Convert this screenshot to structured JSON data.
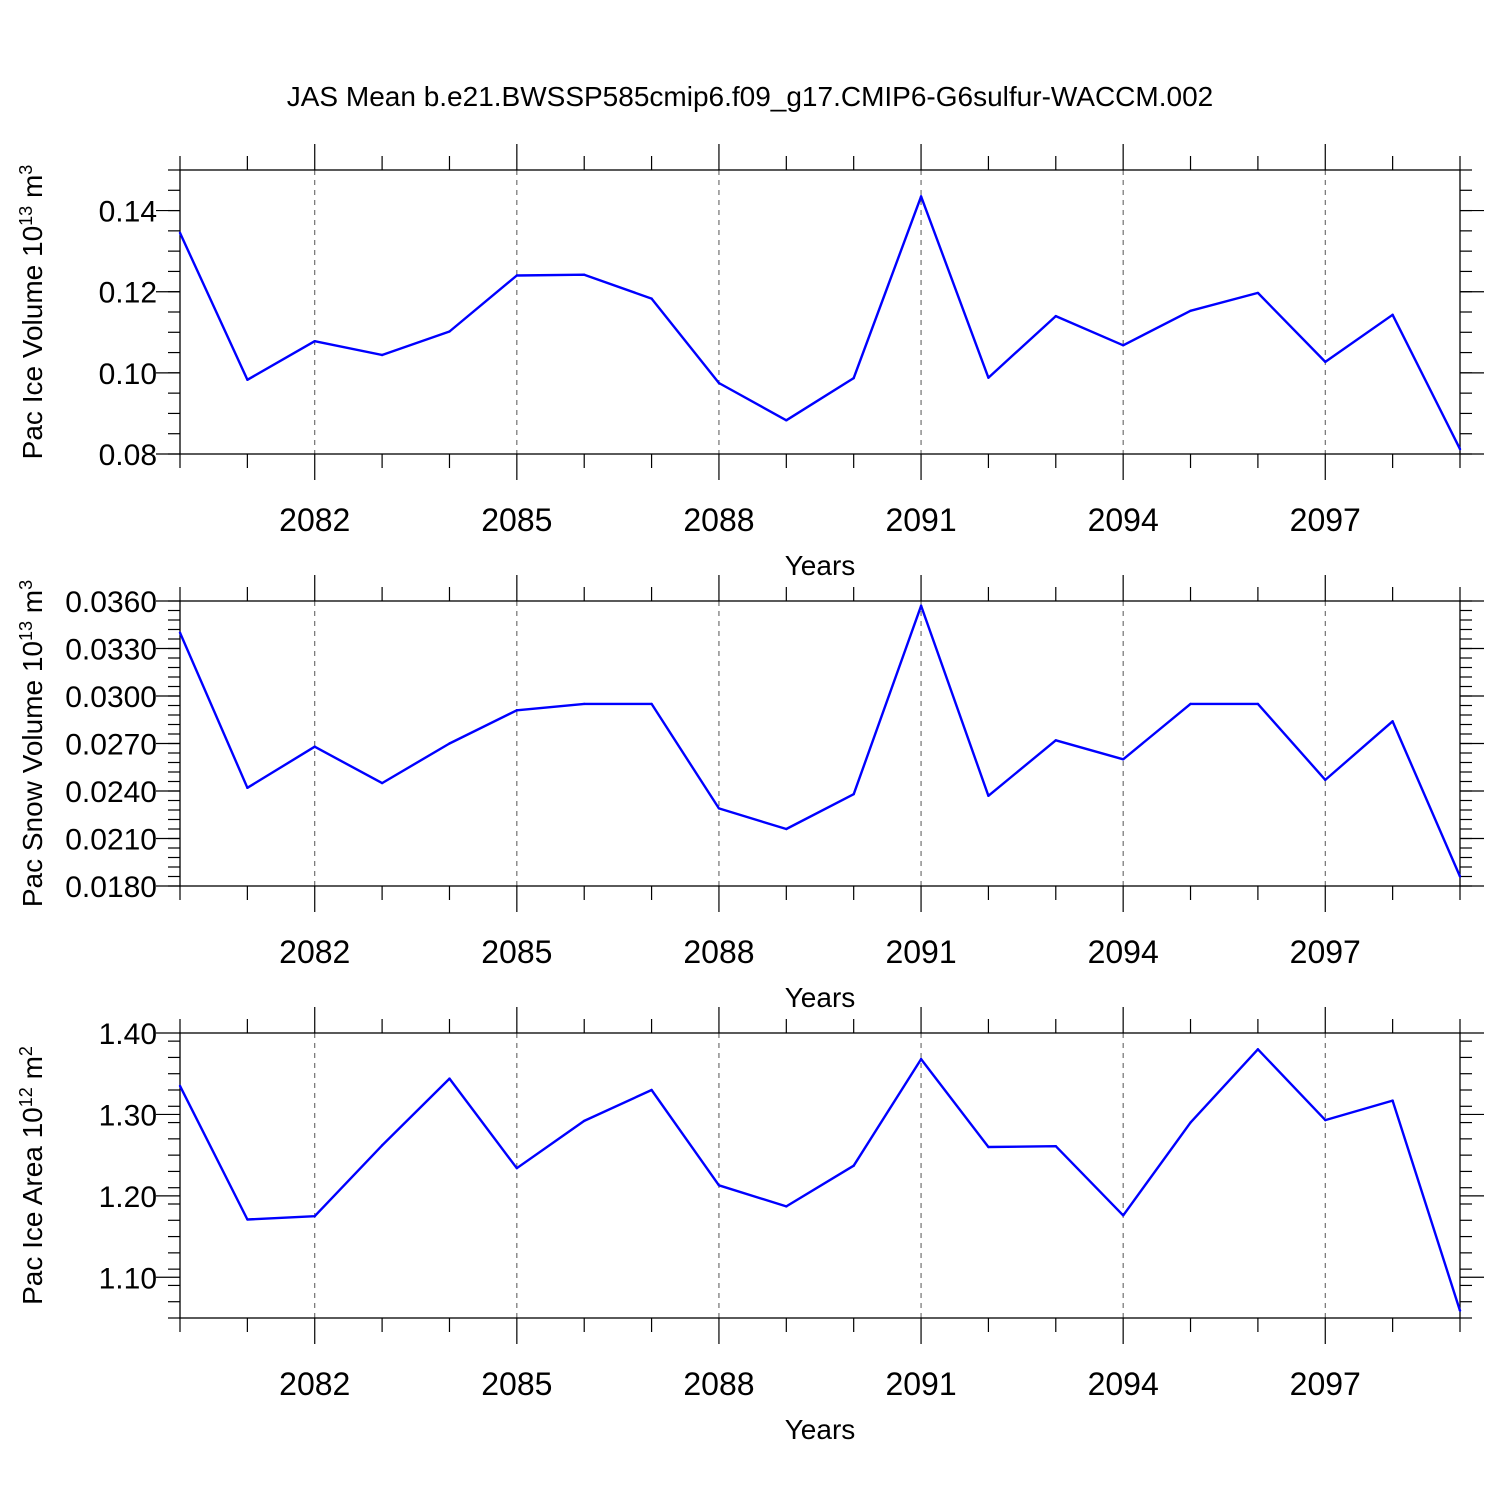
{
  "title": "JAS Mean b.e21.BWSSP585cmip6.f09_g17.CMIP6-G6sulfur-WACCM.002",
  "colors": {
    "line": "#0000ff",
    "grid": "#555555"
  },
  "chart_data": [
    {
      "type": "line",
      "ylabel": "Pac Ice Volume 10",
      "ylabel_exp": "13",
      "ylabel_unit": " m",
      "ylabel_unit_exp": "3",
      "xlabel": "Years",
      "xlim": [
        2080,
        2099
      ],
      "ylim": [
        0.08,
        0.15
      ],
      "yticks": [
        0.08,
        0.1,
        0.12,
        0.14
      ],
      "yticks_text": [
        "0.08",
        "0.10",
        "0.12",
        "0.14"
      ],
      "ydecimals": 2,
      "yminor_step": 0.005,
      "xticks": [
        2082,
        2085,
        2088,
        2091,
        2094,
        2097
      ],
      "xticks_text": [
        "2082",
        "2085",
        "2088",
        "2091",
        "2094",
        "2097"
      ],
      "grid": "x-dashed",
      "x": [
        2080,
        2081,
        2082,
        2083,
        2084,
        2085,
        2086,
        2087,
        2088,
        2089,
        2090,
        2091,
        2092,
        2093,
        2094,
        2095,
        2096,
        2097,
        2098,
        2099
      ],
      "values": [
        0.1345,
        0.0983,
        0.1078,
        0.1044,
        0.1102,
        0.124,
        0.1242,
        0.1183,
        0.0975,
        0.0883,
        0.0987,
        0.1435,
        0.0988,
        0.114,
        0.1068,
        0.1153,
        0.1197,
        0.1027,
        0.1143,
        0.0812
      ]
    },
    {
      "type": "line",
      "ylabel": "Pac Snow Volume 10",
      "ylabel_exp": "13",
      "ylabel_unit": " m",
      "ylabel_unit_exp": "3",
      "xlabel": "Years",
      "xlim": [
        2080,
        2099
      ],
      "ylim": [
        0.018,
        0.036
      ],
      "yticks": [
        0.018,
        0.021,
        0.024,
        0.027,
        0.03,
        0.033,
        0.036
      ],
      "yticks_text": [
        "0.0180",
        "0.0210",
        "0.0240",
        "0.0270",
        "0.0300",
        "0.0330",
        "0.0360"
      ],
      "ydecimals": 4,
      "yminor_step": 0.0006,
      "xticks": [
        2082,
        2085,
        2088,
        2091,
        2094,
        2097
      ],
      "xticks_text": [
        "2082",
        "2085",
        "2088",
        "2091",
        "2094",
        "2097"
      ],
      "grid": "x-dashed",
      "x": [
        2080,
        2081,
        2082,
        2083,
        2084,
        2085,
        2086,
        2087,
        2088,
        2089,
        2090,
        2091,
        2092,
        2093,
        2094,
        2095,
        2096,
        2097,
        2098,
        2099
      ],
      "values": [
        0.034,
        0.0242,
        0.0268,
        0.0245,
        0.027,
        0.0291,
        0.0295,
        0.0295,
        0.0229,
        0.0216,
        0.0238,
        0.0357,
        0.0237,
        0.0272,
        0.026,
        0.0295,
        0.0295,
        0.0247,
        0.0284,
        0.0186
      ]
    },
    {
      "type": "line",
      "ylabel": "Pac Ice Area 10",
      "ylabel_exp": "12",
      "ylabel_unit": " m",
      "ylabel_unit_exp": "2",
      "xlabel": "Years",
      "xlim": [
        2080,
        2099
      ],
      "ylim": [
        1.05,
        1.4
      ],
      "yticks": [
        1.1,
        1.2,
        1.3,
        1.4
      ],
      "yticks_text": [
        "1.10",
        "1.20",
        "1.30",
        "1.40"
      ],
      "ydecimals": 2,
      "yminor_step": 0.02,
      "xticks": [
        2082,
        2085,
        2088,
        2091,
        2094,
        2097
      ],
      "xticks_text": [
        "2082",
        "2085",
        "2088",
        "2091",
        "2094",
        "2097"
      ],
      "grid": "x-dashed",
      "x": [
        2080,
        2081,
        2082,
        2083,
        2084,
        2085,
        2086,
        2087,
        2088,
        2089,
        2090,
        2091,
        2092,
        2093,
        2094,
        2095,
        2096,
        2097,
        2098,
        2099
      ],
      "values": [
        1.335,
        1.171,
        1.175,
        1.262,
        1.344,
        1.234,
        1.292,
        1.33,
        1.213,
        1.187,
        1.237,
        1.368,
        1.26,
        1.261,
        1.176,
        1.29,
        1.38,
        1.293,
        1.317,
        1.059
      ]
    }
  ]
}
